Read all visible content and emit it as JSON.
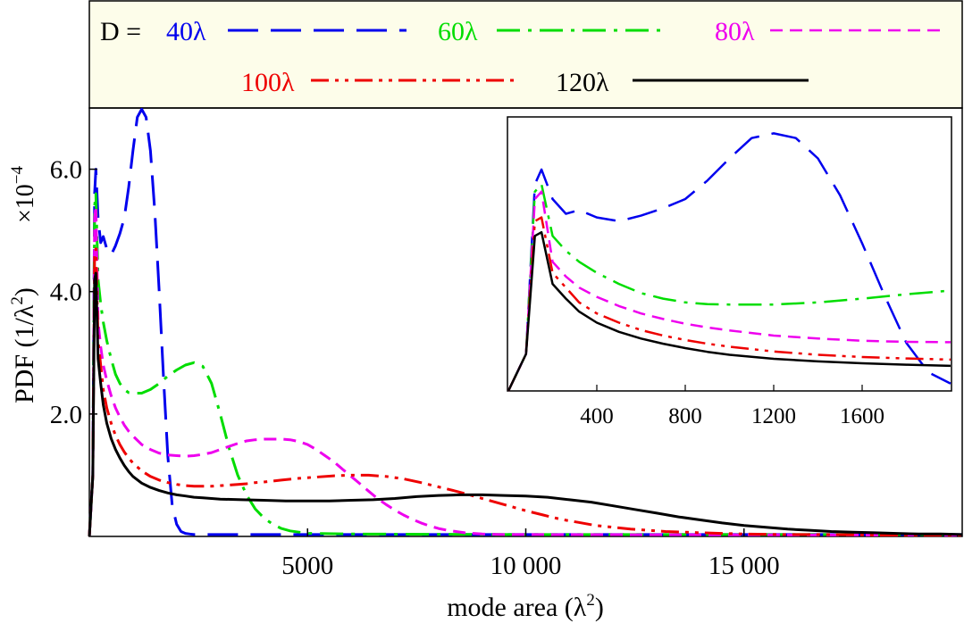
{
  "chart_data": {
    "type": "line",
    "legend": {
      "prefix": "D =",
      "entries": [
        "40λ",
        "60λ",
        "80λ",
        "100λ",
        "120λ"
      ],
      "placement": "top"
    },
    "ylabel": "PDF (1/λ²)",
    "ylabel_text": "PDF (1/λ",
    "ylabel_unit_power": "2",
    "ylabel_close": ")",
    "yscale_base": "×10",
    "yscale_exp": "−4",
    "xlabel_text": "mode area (λ",
    "xlabel_power": "2",
    "xlabel_close": ")",
    "xlim": [
      0,
      20000
    ],
    "ylim": [
      0,
      7.0
    ],
    "xticks": [
      5000,
      10000,
      15000
    ],
    "xtick_labels": [
      "5000",
      "10 000",
      "15 000"
    ],
    "yticks": [
      2.0,
      4.0,
      6.0
    ],
    "ytick_labels": [
      "2.0",
      "4.0",
      "6.0"
    ],
    "series": [
      {
        "name": "40λ",
        "color": "#0000ee",
        "dash": "long-dash",
        "x": [
          0,
          80,
          120,
          150,
          200,
          260,
          320,
          400,
          500,
          600,
          700,
          800,
          900,
          1000,
          1100,
          1200,
          1300,
          1400,
          1500,
          1600,
          1700,
          1800,
          1900,
          2000,
          2100,
          2200,
          2300,
          2400,
          2500,
          3000,
          5000,
          10000,
          20000
        ],
        "y": [
          0,
          1.0,
          5.6,
          6.0,
          5.2,
          4.8,
          4.9,
          4.7,
          4.6,
          4.75,
          4.95,
          5.2,
          5.7,
          6.3,
          6.85,
          6.98,
          6.85,
          6.3,
          5.3,
          4.0,
          2.6,
          1.3,
          0.5,
          0.2,
          0.08,
          0.05,
          0.04,
          0.03,
          0.03,
          0.03,
          0.03,
          0.03,
          0.03
        ]
      },
      {
        "name": "60λ",
        "color": "#00dd00",
        "dash": "dash-dot",
        "x": [
          0,
          80,
          120,
          150,
          200,
          260,
          320,
          400,
          500,
          600,
          700,
          800,
          900,
          1000,
          1200,
          1400,
          1600,
          1800,
          2000,
          2200,
          2400,
          2600,
          2800,
          3000,
          3200,
          3400,
          3600,
          3800,
          4000,
          4200,
          4400,
          4600,
          4800,
          5000,
          6000,
          10000,
          20000
        ],
        "y": [
          0,
          1.0,
          5.4,
          5.6,
          4.2,
          3.8,
          3.5,
          3.2,
          2.9,
          2.65,
          2.5,
          2.4,
          2.35,
          2.34,
          2.34,
          2.4,
          2.5,
          2.62,
          2.72,
          2.8,
          2.84,
          2.78,
          2.5,
          2.0,
          1.45,
          1.0,
          0.68,
          0.45,
          0.3,
          0.2,
          0.13,
          0.09,
          0.07,
          0.05,
          0.04,
          0.03,
          0.03
        ]
      },
      {
        "name": "80λ",
        "color": "#ee00ee",
        "dash": "dash",
        "x": [
          0,
          80,
          120,
          150,
          200,
          260,
          320,
          400,
          500,
          600,
          700,
          800,
          900,
          1000,
          1200,
          1400,
          1600,
          1800,
          2000,
          2200,
          2400,
          2600,
          2800,
          3000,
          3200,
          3400,
          3600,
          3800,
          4000,
          4200,
          4400,
          4600,
          4800,
          5000,
          5200,
          5400,
          5600,
          5800,
          6000,
          6200,
          6400,
          6600,
          6800,
          7000,
          7200,
          7400,
          7600,
          7800,
          8000,
          8200,
          8400,
          8600,
          8800,
          9000,
          9500,
          10000,
          20000
        ],
        "y": [
          0,
          1.0,
          5.2,
          5.4,
          3.5,
          3.1,
          2.8,
          2.55,
          2.3,
          2.1,
          1.95,
          1.82,
          1.72,
          1.64,
          1.5,
          1.42,
          1.36,
          1.33,
          1.32,
          1.31,
          1.32,
          1.34,
          1.37,
          1.42,
          1.47,
          1.52,
          1.56,
          1.58,
          1.59,
          1.59,
          1.59,
          1.58,
          1.55,
          1.5,
          1.42,
          1.32,
          1.22,
          1.1,
          0.98,
          0.86,
          0.74,
          0.62,
          0.52,
          0.43,
          0.35,
          0.28,
          0.22,
          0.17,
          0.13,
          0.1,
          0.08,
          0.06,
          0.05,
          0.04,
          0.03,
          0.03,
          0.02
        ]
      },
      {
        "name": "100λ",
        "color": "#ee0000",
        "dash": "dash-dot-dot",
        "x": [
          0,
          80,
          120,
          150,
          200,
          260,
          320,
          400,
          500,
          600,
          700,
          800,
          900,
          1000,
          1200,
          1400,
          1600,
          1800,
          2000,
          2200,
          2400,
          2600,
          2800,
          3000,
          3200,
          3400,
          3600,
          3800,
          4000,
          4400,
          4800,
          5200,
          5600,
          6000,
          6400,
          6800,
          7200,
          7600,
          8000,
          8400,
          8800,
          9200,
          9600,
          10000,
          10400,
          10800,
          11200,
          11600,
          12000,
          12400,
          12800,
          13200,
          13600,
          14000,
          14500,
          15000,
          16000,
          17000,
          18000,
          19000,
          20000
        ],
        "y": [
          0,
          1.0,
          4.6,
          4.7,
          3.2,
          2.8,
          2.4,
          2.1,
          1.85,
          1.65,
          1.5,
          1.38,
          1.28,
          1.2,
          1.07,
          0.98,
          0.92,
          0.88,
          0.85,
          0.83,
          0.82,
          0.82,
          0.82,
          0.83,
          0.84,
          0.85,
          0.86,
          0.88,
          0.89,
          0.92,
          0.95,
          0.97,
          0.99,
          1.0,
          1.0,
          0.98,
          0.94,
          0.88,
          0.81,
          0.74,
          0.66,
          0.58,
          0.5,
          0.42,
          0.35,
          0.28,
          0.23,
          0.18,
          0.15,
          0.12,
          0.1,
          0.08,
          0.07,
          0.06,
          0.05,
          0.04,
          0.03,
          0.03,
          0.02,
          0.02,
          0.02
        ]
      },
      {
        "name": "120λ",
        "color": "#000000",
        "dash": "solid",
        "x": [
          0,
          80,
          120,
          150,
          200,
          260,
          320,
          400,
          500,
          600,
          700,
          800,
          900,
          1000,
          1200,
          1400,
          1600,
          1800,
          2000,
          2200,
          2400,
          2600,
          2800,
          3000,
          3500,
          4000,
          4500,
          5000,
          5500,
          6000,
          6500,
          7000,
          7500,
          8000,
          8500,
          9000,
          9500,
          10000,
          10500,
          11000,
          11500,
          12000,
          12500,
          13000,
          13500,
          14000,
          14500,
          15000,
          15500,
          16000,
          16500,
          17000,
          17500,
          18000,
          18500,
          19000,
          19500,
          20000
        ],
        "y": [
          0,
          1.0,
          4.2,
          4.3,
          2.9,
          2.5,
          2.15,
          1.85,
          1.6,
          1.42,
          1.28,
          1.16,
          1.06,
          0.98,
          0.87,
          0.8,
          0.75,
          0.71,
          0.68,
          0.66,
          0.64,
          0.63,
          0.62,
          0.61,
          0.6,
          0.59,
          0.58,
          0.58,
          0.58,
          0.59,
          0.6,
          0.62,
          0.65,
          0.67,
          0.68,
          0.68,
          0.67,
          0.66,
          0.64,
          0.6,
          0.56,
          0.5,
          0.44,
          0.38,
          0.32,
          0.27,
          0.22,
          0.18,
          0.15,
          0.12,
          0.1,
          0.08,
          0.07,
          0.06,
          0.05,
          0.04,
          0.04,
          0.03
        ]
      }
    ],
    "inset": {
      "xlim": [
        0,
        2000
      ],
      "ylim": [
        0,
        7.4
      ],
      "xticks": [
        400,
        800,
        1200,
        1600
      ],
      "xtick_labels": [
        "400",
        "800",
        "1200",
        "1600"
      ]
    }
  }
}
